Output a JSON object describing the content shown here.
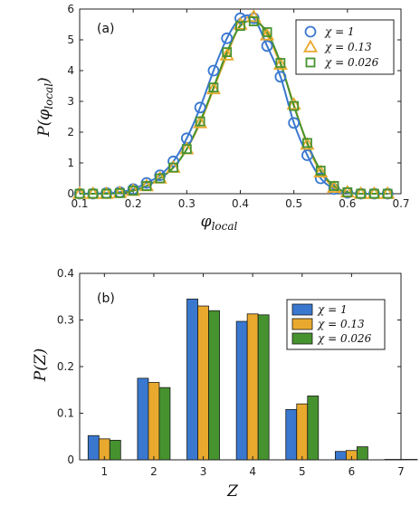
{
  "colors": {
    "s1": "#3a78d0",
    "s2": "#e8a92e",
    "s3": "#46922f"
  },
  "chart_data": [
    {
      "type": "scatter",
      "panel_label": "(a)",
      "xlabel_base": "φ",
      "xlabel_sub": "local",
      "ylabel_base": "P(φ",
      "ylabel_sub": "local",
      "ylabel_close": ")",
      "xlim": [
        0.1,
        0.7
      ],
      "ylim": [
        0,
        6
      ],
      "xticks": [
        0.1,
        0.2,
        0.3,
        0.4,
        0.5,
        0.6,
        0.7
      ],
      "yticks": [
        0,
        1,
        2,
        3,
        4,
        5,
        6
      ],
      "xtick_labels": [
        "0.1",
        "0.2",
        "0.3",
        "0.4",
        "0.5",
        "0.6",
        "0.7"
      ],
      "ytick_labels": [
        "0",
        "1",
        "2",
        "3",
        "4",
        "5",
        "6"
      ],
      "legend_position": "top-right",
      "series": [
        {
          "name": "χ = 1",
          "marker": "circle",
          "x": [
            0.1,
            0.125,
            0.15,
            0.175,
            0.2,
            0.225,
            0.25,
            0.275,
            0.3,
            0.325,
            0.35,
            0.375,
            0.4,
            0.425,
            0.45,
            0.475,
            0.5,
            0.525,
            0.55,
            0.575,
            0.6,
            0.625,
            0.65,
            0.675
          ],
          "y": [
            0.0,
            0.0,
            0.02,
            0.05,
            0.15,
            0.35,
            0.6,
            1.05,
            1.8,
            2.8,
            4.0,
            5.05,
            5.7,
            5.7,
            4.8,
            3.8,
            2.3,
            1.25,
            0.5,
            0.15,
            0.03,
            0.0,
            0.0,
            0.0
          ]
        },
        {
          "name": "χ = 0.13",
          "marker": "triangle",
          "x": [
            0.1,
            0.125,
            0.15,
            0.175,
            0.2,
            0.225,
            0.25,
            0.275,
            0.3,
            0.325,
            0.35,
            0.375,
            0.4,
            0.425,
            0.45,
            0.475,
            0.5,
            0.525,
            0.55,
            0.575,
            0.6,
            0.625,
            0.65,
            0.675
          ],
          "y": [
            0.0,
            0.0,
            0.0,
            0.03,
            0.1,
            0.25,
            0.5,
            0.85,
            1.45,
            2.3,
            3.4,
            4.5,
            5.5,
            5.75,
            5.15,
            4.2,
            2.9,
            1.6,
            0.7,
            0.2,
            0.05,
            0.0,
            0.0,
            0.0
          ]
        },
        {
          "name": "χ = 0.026",
          "marker": "square",
          "x": [
            0.1,
            0.125,
            0.15,
            0.175,
            0.2,
            0.225,
            0.25,
            0.275,
            0.3,
            0.325,
            0.35,
            0.375,
            0.4,
            0.425,
            0.45,
            0.475,
            0.5,
            0.525,
            0.55,
            0.575,
            0.6,
            0.625,
            0.65,
            0.675
          ],
          "y": [
            0.0,
            0.0,
            0.0,
            0.02,
            0.1,
            0.25,
            0.5,
            0.85,
            1.45,
            2.35,
            3.45,
            4.6,
            5.45,
            5.6,
            5.25,
            4.25,
            2.85,
            1.65,
            0.75,
            0.25,
            0.05,
            0.0,
            0.0,
            0.0
          ]
        }
      ]
    },
    {
      "type": "bar",
      "panel_label": "(b)",
      "xlabel_base": "Z",
      "ylabel_base": "P(Z)",
      "categories": [
        "1",
        "2",
        "3",
        "4",
        "5",
        "6",
        "7"
      ],
      "xlim": [
        0.5,
        7.0
      ],
      "ylim": [
        0,
        0.4
      ],
      "yticks": [
        0,
        0.1,
        0.2,
        0.3,
        0.4
      ],
      "ytick_labels": [
        "0",
        "0.1",
        "0.2",
        "0.3",
        "0.4"
      ],
      "legend_position": "top-right",
      "series": [
        {
          "name": "χ = 1",
          "values": [
            0.052,
            0.175,
            0.345,
            0.297,
            0.108,
            0.018,
            0.001
          ]
        },
        {
          "name": "χ = 0.13",
          "values": [
            0.045,
            0.166,
            0.33,
            0.313,
            0.12,
            0.02,
            0.001
          ]
        },
        {
          "name": "χ = 0.026",
          "values": [
            0.042,
            0.155,
            0.32,
            0.311,
            0.137,
            0.028,
            0.001
          ]
        }
      ]
    }
  ]
}
